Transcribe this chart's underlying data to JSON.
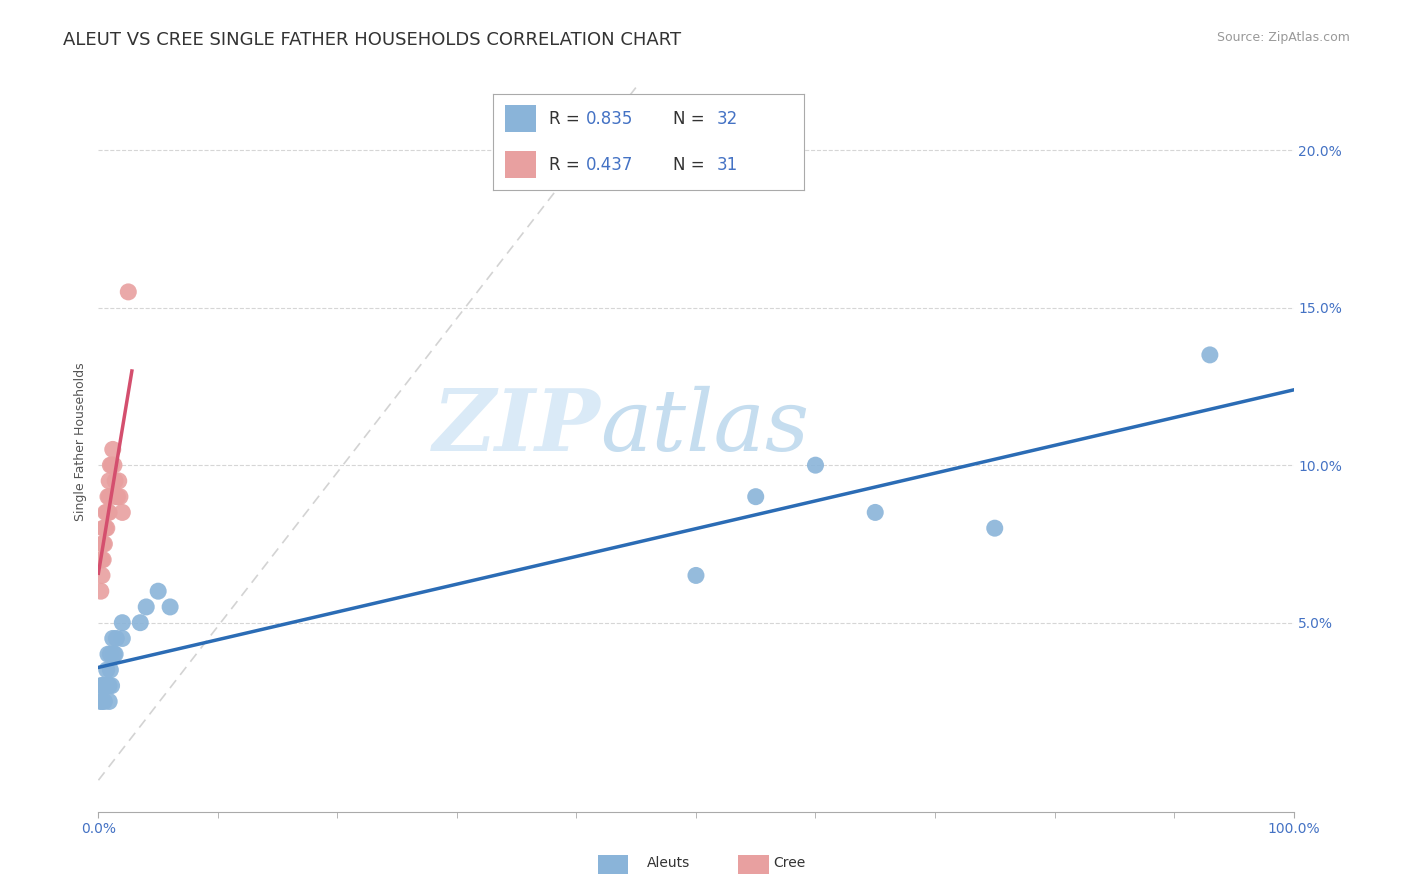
{
  "title": "ALEUT VS CREE SINGLE FATHER HOUSEHOLDS CORRELATION CHART",
  "source": "Source: ZipAtlas.com",
  "ylabel": "Single Father Households",
  "aleut_R": 0.835,
  "aleut_N": 32,
  "cree_R": 0.437,
  "cree_N": 31,
  "aleut_color": "#8ab4d9",
  "cree_color": "#e8a0a0",
  "aleut_line_color": "#2b6cb5",
  "cree_line_color": "#d44f6e",
  "diag_color": "#c8c8c8",
  "background_color": "#ffffff",
  "grid_color": "#cccccc",
  "tick_color": "#4472c4",
  "aleut_x": [
    0.002,
    0.002,
    0.003,
    0.003,
    0.004,
    0.005,
    0.005,
    0.006,
    0.007,
    0.008,
    0.008,
    0.009,
    0.009,
    0.01,
    0.01,
    0.011,
    0.012,
    0.013,
    0.014,
    0.015,
    0.02,
    0.02,
    0.035,
    0.04,
    0.05,
    0.06,
    0.5,
    0.55,
    0.6,
    0.65,
    0.75,
    0.93
  ],
  "aleut_y": [
    0.025,
    0.03,
    0.03,
    0.025,
    0.03,
    0.03,
    0.025,
    0.03,
    0.035,
    0.04,
    0.03,
    0.03,
    0.025,
    0.04,
    0.035,
    0.03,
    0.045,
    0.04,
    0.04,
    0.045,
    0.05,
    0.045,
    0.05,
    0.055,
    0.06,
    0.055,
    0.065,
    0.09,
    0.1,
    0.085,
    0.08,
    0.135
  ],
  "cree_x": [
    0.002,
    0.002,
    0.003,
    0.003,
    0.003,
    0.004,
    0.004,
    0.004,
    0.005,
    0.005,
    0.006,
    0.006,
    0.007,
    0.007,
    0.008,
    0.008,
    0.009,
    0.009,
    0.009,
    0.01,
    0.01,
    0.011,
    0.012,
    0.013,
    0.014,
    0.015,
    0.016,
    0.017,
    0.018,
    0.02,
    0.025
  ],
  "cree_y": [
    0.06,
    0.07,
    0.065,
    0.07,
    0.075,
    0.07,
    0.075,
    0.08,
    0.075,
    0.08,
    0.08,
    0.085,
    0.08,
    0.085,
    0.085,
    0.09,
    0.085,
    0.09,
    0.095,
    0.09,
    0.1,
    0.1,
    0.105,
    0.1,
    0.095,
    0.09,
    0.09,
    0.095,
    0.09,
    0.085,
    0.155
  ],
  "xlim": [
    0.0,
    1.0
  ],
  "ylim": [
    -0.01,
    0.225
  ],
  "yticks": [
    0.05,
    0.1,
    0.15,
    0.2
  ],
  "ytick_labels": [
    "5.0%",
    "10.0%",
    "15.0%",
    "20.0%"
  ],
  "xticks": [
    0.0,
    1.0
  ],
  "xtick_labels": [
    "0.0%",
    "100.0%"
  ],
  "title_fontsize": 13,
  "axis_label_fontsize": 9,
  "tick_fontsize": 10,
  "legend_fontsize": 12
}
